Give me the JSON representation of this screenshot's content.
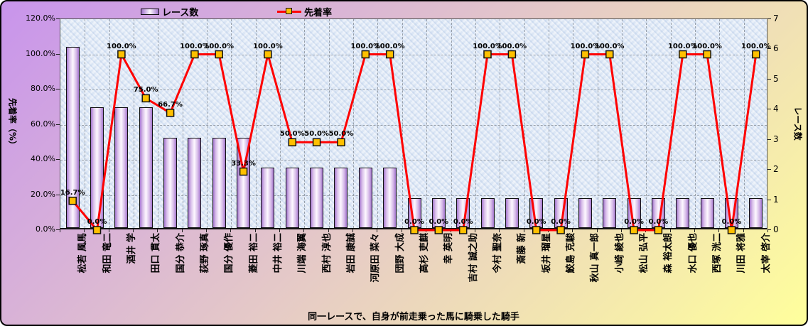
{
  "chart": {
    "left_axis": {
      "title": "先着率（%）",
      "ticks": [
        "0.0%",
        "20.0%",
        "40.0%",
        "60.0%",
        "80.0%",
        "100.0%",
        "120.0%"
      ],
      "min": 0,
      "max": 120,
      "step": 20
    },
    "right_axis": {
      "title": "レース数",
      "ticks": [
        "0",
        "1",
        "2",
        "3",
        "4",
        "5",
        "6",
        "7"
      ],
      "min": 0,
      "max": 7,
      "step": 1
    },
    "bottom_title": "同一レースで、自身が前走乗った馬に騎乗した騎手",
    "colors": {
      "line": "#ff0000",
      "marker_fill": "#ffc000",
      "marker_border": "#111111",
      "bar_edge": "#a274cc",
      "bar_center": "#fdf8ff",
      "plot_background": "#dce7f5",
      "gridline": "#98a0aa",
      "background_gradient_start": "#c894ec",
      "background_gradient_end": "#ffff9c"
    }
  },
  "chart_data": {
    "type": "bar+line",
    "title": "同一レースで、自身が前走乗った馬に騎乗した騎手",
    "categories": [
      "松若 風馬",
      "和田 竜二",
      "酒井 学",
      "田口 貫太",
      "国分 恭介",
      "荻野 琢真",
      "国分 優作",
      "菱田 裕二",
      "中井 裕二",
      "川端 海翼",
      "西村 淳也",
      "岩田 康誠",
      "河原田 菜々",
      "団野 大成",
      "高杉 吏麒",
      "幸 英明",
      "吉村 誠之助",
      "今村 聖奈",
      "斎藤 新",
      "坂井 瑠星",
      "鮫島 克駿",
      "秋山 真一郎",
      "小崎 綾也",
      "松山 弘平",
      "森 裕太朗",
      "水口 優也",
      "西塚 洸二",
      "川田 将雅",
      "太宰 啓介"
    ],
    "series": [
      {
        "name": "レース数",
        "type": "bar",
        "axis": "right",
        "values": [
          6,
          4,
          4,
          4,
          3,
          3,
          3,
          3,
          2,
          2,
          2,
          2,
          2,
          2,
          1,
          1,
          1,
          1,
          1,
          1,
          1,
          1,
          1,
          1,
          1,
          1,
          1,
          1,
          1
        ]
      },
      {
        "name": "先着率",
        "type": "line",
        "axis": "left",
        "values": [
          16.7,
          0,
          100,
          75,
          66.7,
          100,
          100,
          33.3,
          100,
          50,
          50,
          50,
          100,
          100,
          0,
          0,
          0,
          100,
          100,
          0,
          0,
          100,
          100,
          0,
          0,
          100,
          100,
          0,
          100
        ],
        "labels": [
          "16.7%",
          "0.0%",
          "100.0%",
          "75.0%",
          "66.7%",
          "100.0%",
          "100.0%",
          "33.3%",
          "100.0%",
          "50.0%",
          "50.0%",
          "50.0%",
          "100.0%",
          "100.0%",
          "0.0%",
          "0.0%",
          "0.0%",
          "100.0%",
          "100.0%",
          "0.0%",
          "0.0%",
          "100.0%",
          "100.0%",
          "0.0%",
          "0.0%",
          "100.0%",
          "100.0%",
          "0.0%",
          "100.0%"
        ]
      }
    ],
    "left_ylim": [
      0,
      120
    ],
    "right_ylim": [
      0,
      7
    ],
    "grid": true,
    "legend_position": "top",
    "xlabel_rotation": -90
  }
}
